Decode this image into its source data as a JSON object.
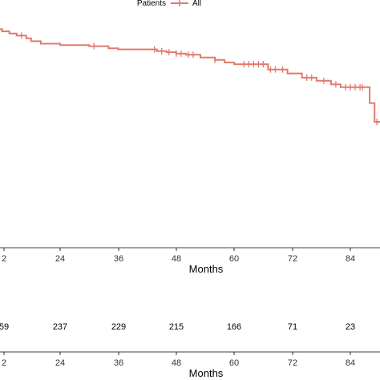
{
  "chart_data": {
    "type": "line",
    "legend": {
      "title": "Patients",
      "series_label": "All",
      "position": "top"
    },
    "x_axis": {
      "label": "Months",
      "ticks": [
        "2",
        "24",
        "36",
        "48",
        "60",
        "72",
        "84"
      ],
      "range": [
        10,
        92
      ]
    },
    "series": [
      {
        "name": "All",
        "color": "#e07a6d",
        "x": [
          10,
          11,
          12,
          13.5,
          15,
          17,
          18,
          20,
          24,
          30,
          34,
          36,
          42,
          44,
          46,
          48,
          50,
          53,
          56,
          58,
          60,
          65,
          67,
          69,
          71,
          74,
          77,
          80,
          82,
          87,
          88,
          89,
          92
        ],
        "y": [
          100,
          99,
          98.4,
          97.8,
          97.2,
          96.4,
          95.6,
          94.9,
          94.5,
          94.2,
          93.6,
          93.3,
          93.3,
          92.8,
          92.5,
          92.1,
          91.8,
          91.0,
          90.3,
          89.6,
          89.1,
          89.1,
          87.6,
          87.6,
          86.5,
          85.3,
          84.4,
          83.4,
          82.6,
          82.6,
          78.1,
          72.8,
          72.8
        ]
      }
    ],
    "censor_x": [
      16,
      31,
      43.5,
      45,
      46.5,
      48,
      49,
      50.5,
      51.5,
      56,
      62,
      63,
      64,
      65,
      66,
      67.5,
      68.5,
      70,
      75,
      76,
      78.5,
      81,
      83,
      84,
      85,
      86,
      86.5,
      89.5,
      90.5,
      91.5
    ],
    "risk_table": {
      "values": [
        "59",
        "237",
        "229",
        "215",
        "166",
        "71",
        "23"
      ],
      "x_axis_label": "Months",
      "ticks": [
        "2",
        "24",
        "36",
        "48",
        "60",
        "72",
        "84"
      ]
    }
  }
}
